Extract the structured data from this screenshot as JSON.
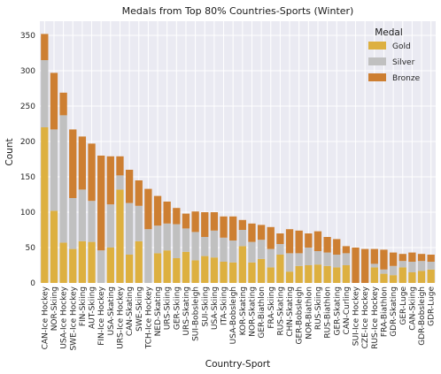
{
  "chart_data": {
    "type": "bar",
    "stacked": true,
    "title": "Medals from Top 80% Countries-Sports (Winter)",
    "xlabel": "Country-Sport",
    "ylabel": "Count",
    "ylim": [
      0,
      370
    ],
    "yticks": [
      0,
      50,
      100,
      150,
      200,
      250,
      300,
      350
    ],
    "grid": true,
    "legend": {
      "title": "Medal",
      "position": "top-right"
    },
    "categories": [
      "CAN-Ice Hockey",
      "NOR-Skiing",
      "USA-Ice Hockey",
      "SWE-Ice Hockey",
      "FIN-Skiing",
      "AUT-Skiing",
      "FIN-Ice Hockey",
      "USA-Skating",
      "URS-Ice Hockey",
      "CAN-Skating",
      "SWE-Skiing",
      "TCH-Ice Hockey",
      "NED-Skating",
      "URS-Skiing",
      "GER-Skiing",
      "URS-Skating",
      "SUI-Bobsleigh",
      "SUI-Skiing",
      "USA-Skiing",
      "ITA-Skiing",
      "USA-Bobsleigh",
      "KOR-Skating",
      "NOR-Skating",
      "GER-Biathlon",
      "FRA-Skiing",
      "RUS-Skating",
      "CHN-Skating",
      "GER-Bobsleigh",
      "NOR-Biathlon",
      "RUS-Skiing",
      "RUS-Biathlon",
      "GER-Skating",
      "CAN-Curling",
      "SUI-Ice Hockey",
      "CZE-Ice Hockey",
      "RUS-Ice Hockey",
      "FRA-Biathlon",
      "GDR-Skating",
      "GER-Luge",
      "CAN-Skiing",
      "GDR-Bobsleigh",
      "GDR-Luge"
    ],
    "series": [
      {
        "name": "Gold",
        "color": "#DDB040",
        "values": [
          220,
          102,
          57,
          48,
          59,
          58,
          0,
          50,
          132,
          40,
          59,
          0,
          42,
          46,
          35,
          44,
          32,
          38,
          36,
          30,
          29,
          52,
          29,
          34,
          22,
          40,
          16,
          24,
          25,
          26,
          24,
          22,
          25,
          0,
          0,
          22,
          13,
          11,
          22,
          15,
          17,
          19
        ]
      },
      {
        "name": "Silver",
        "color": "#C0C0C0",
        "values": [
          95,
          115,
          180,
          72,
          73,
          58,
          46,
          61,
          20,
          73,
          50,
          76,
          39,
          38,
          48,
          33,
          40,
          27,
          38,
          34,
          31,
          23,
          29,
          27,
          26,
          15,
          26,
          18,
          25,
          19,
          19,
          18,
          17,
          0,
          0,
          5,
          6,
          13,
          9,
          15,
          14,
          11
        ]
      },
      {
        "name": "Bronze",
        "color": "#CD7F32",
        "values": [
          37,
          80,
          32,
          97,
          75,
          81,
          134,
          68,
          27,
          47,
          36,
          57,
          42,
          31,
          23,
          21,
          29,
          35,
          26,
          30,
          34,
          14,
          26,
          21,
          31,
          15,
          34,
          32,
          20,
          28,
          22,
          22,
          10,
          50,
          48,
          21,
          28,
          19,
          10,
          13,
          10,
          10
        ]
      }
    ]
  }
}
